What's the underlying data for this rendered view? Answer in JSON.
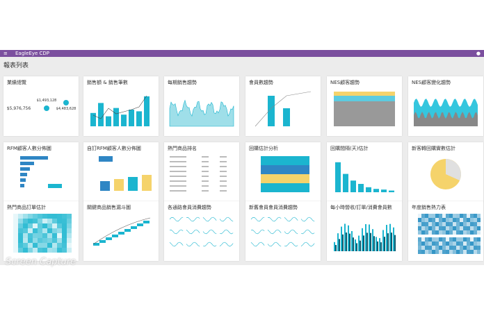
{
  "header": {
    "app_name": "EagleEye CDP",
    "page_title": "報表列表"
  },
  "cards": [
    {
      "title": "業績總覽",
      "kpis": [
        "$5,976,756",
        "$1,493,128",
        "$4,483,628"
      ]
    },
    {
      "title": "銷售額 & 銷售筆數"
    },
    {
      "title": "每期銷售趨勢"
    },
    {
      "title": "會員數趨勢"
    },
    {
      "title": "NES顧客趨勢"
    },
    {
      "title": "NES顧客變化趨勢"
    },
    {
      "title": "RFM顧客人數分佈圖"
    },
    {
      "title": "自訂RFM顧客人數分佈圖"
    },
    {
      "title": "熱門商品排名"
    },
    {
      "title": "回購估計分析"
    },
    {
      "title": "回購間隔(天)估計"
    },
    {
      "title": "新客轉回購實數估計"
    },
    {
      "title": "熱門商品訂單估計"
    },
    {
      "title": "關鍵商品銷售漏斗圖"
    },
    {
      "title": "各通路會員消費趨勢"
    },
    {
      "title": "新舊會員會員消費趨勢"
    },
    {
      "title": "每小時營收/訂單/消費會員數"
    },
    {
      "title": "年度銷售熱力表"
    }
  ],
  "watermark": "Screen Capture"
}
